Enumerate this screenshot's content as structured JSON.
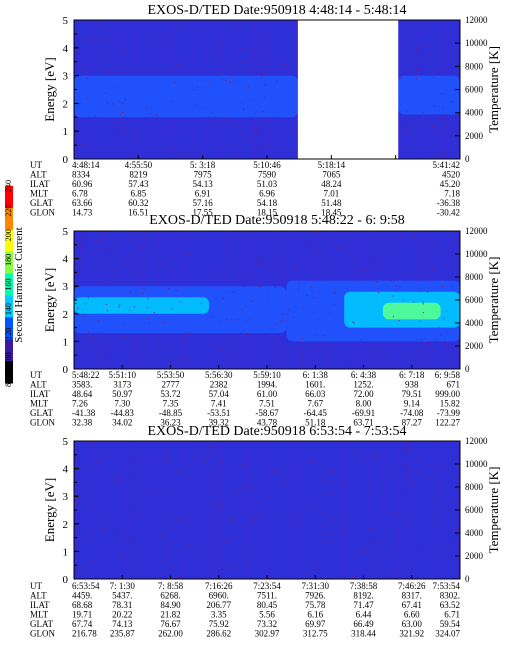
{
  "colors": {
    "background": "#2f2fd8",
    "enhanced": "#1f55ff",
    "strong": "#00c8ff",
    "peak": "#55ff90",
    "gap": "#ffffff",
    "speckle": "#7a1a6a"
  },
  "colorbar": {
    "label": "Second Harmonic Current",
    "ticks": [
      "240",
      "220",
      "200",
      "180",
      "160",
      "140",
      "120",
      "100",
      "80"
    ],
    "stops": [
      "#ff0000",
      "#ff8800",
      "#ffff00",
      "#88ff44",
      "#00ffaa",
      "#00ccff",
      "#0055ff",
      "#3a1aa0",
      "#000000"
    ]
  },
  "chart_data": [
    {
      "type": "heatmap",
      "title": "EXOS-D/TED   Date:950918   4:48:14 - 5:48:14",
      "ylabel": "Energy [eV]",
      "y2label": "Temperature [K]",
      "ylim": [
        0,
        5
      ],
      "y2lim": [
        0,
        12000
      ],
      "yticks": [
        "0",
        "1",
        "2",
        "3",
        "4",
        "5"
      ],
      "y2ticks": [
        "0",
        "2000",
        "4000",
        "6000",
        "8000",
        "10000",
        "12000"
      ],
      "gaps": [
        [
          0.58,
          0.84
        ]
      ],
      "bands": [
        {
          "from": 0.0,
          "to": 0.58,
          "ylow": 1.5,
          "yhigh": 3.0,
          "level": "enhanced"
        },
        {
          "from": 0.84,
          "to": 1.0,
          "ylow": 1.6,
          "yhigh": 3.0,
          "level": "enhanced"
        }
      ],
      "rows": [
        {
          "name": "UT",
          "values": [
            "4:48:14",
            "4:55:50",
            "5: 3:18",
            "5:10:46",
            "5:18:14",
            "",
            "5:41:42"
          ]
        },
        {
          "name": "ALT",
          "values": [
            "8334",
            "8219",
            "7975",
            "7590",
            "7065",
            "",
            "4520"
          ]
        },
        {
          "name": "ILAT",
          "values": [
            "60.96",
            "57.43",
            "54.13",
            "51.03",
            "48.24",
            "",
            "45.20"
          ]
        },
        {
          "name": "MLT",
          "values": [
            "6.78",
            "6.85",
            "6.91",
            "6.96",
            "7.01",
            "",
            "7.18"
          ]
        },
        {
          "name": "GLAT",
          "values": [
            "63.66",
            "60.32",
            "57.16",
            "54.18",
            "51.48",
            "",
            "-36.38"
          ]
        },
        {
          "name": "GLON",
          "values": [
            "14.73",
            "16.51",
            "17.55",
            "18.15",
            "18.45",
            "",
            "-30.42"
          ]
        }
      ]
    },
    {
      "type": "heatmap",
      "title": "EXOS-D/TED   Date:950918   5:48:22 - 6: 9:58",
      "ylabel": "Energy [eV]",
      "y2label": "Temperature [K]",
      "ylim": [
        0,
        5
      ],
      "y2lim": [
        0,
        12000
      ],
      "yticks": [
        "0",
        "1",
        "2",
        "3",
        "4",
        "5"
      ],
      "y2ticks": [
        "0",
        "2000",
        "4000",
        "6000",
        "8000",
        "10000",
        "12000"
      ],
      "gaps": [],
      "bands": [
        {
          "from": 0.0,
          "to": 0.55,
          "ylow": 1.3,
          "yhigh": 3.0,
          "level": "enhanced"
        },
        {
          "from": 0.55,
          "to": 1.0,
          "ylow": 1.0,
          "yhigh": 3.2,
          "level": "enhanced"
        },
        {
          "from": 0.0,
          "to": 0.35,
          "ylow": 2.0,
          "yhigh": 2.6,
          "level": "strong"
        },
        {
          "from": 0.7,
          "to": 1.0,
          "ylow": 1.5,
          "yhigh": 2.8,
          "level": "strong"
        },
        {
          "from": 0.8,
          "to": 0.95,
          "ylow": 1.8,
          "yhigh": 2.4,
          "level": "peak"
        }
      ],
      "rows": [
        {
          "name": "UT",
          "values": [
            "5:48:22",
            "5:51:10",
            "5:53:50",
            "5:56:30",
            "5:59:10",
            "6: 1:38",
            "6: 4:38",
            "6: 7:18",
            "6: 9:58"
          ]
        },
        {
          "name": "ALT",
          "values": [
            "3583.",
            "3173",
            "2777",
            "2382",
            "1994.",
            "1601.",
            "1252.",
            "938",
            "671"
          ]
        },
        {
          "name": "ILAT",
          "values": [
            "48.64",
            "50.97",
            "53.72",
            "57.04",
            "61.00",
            "66.03",
            "72.00",
            "79.51",
            "999.00"
          ]
        },
        {
          "name": "MLT",
          "values": [
            "7.26",
            "7.30",
            "7.35",
            "7.41",
            "7.51",
            "7.67",
            "8.00",
            "9.14",
            "15.82"
          ]
        },
        {
          "name": "GLAT",
          "values": [
            "-41.38",
            "-44.83",
            "-48.85",
            "-53.51",
            "-58.67",
            "-64.45",
            "-69.91",
            "-74.08",
            "-73.99"
          ]
        },
        {
          "name": "GLON",
          "values": [
            "32.38",
            "34.02",
            "36.23",
            "39.32",
            "43.78",
            "51.18",
            "63.71",
            "87.27",
            "122.27"
          ]
        }
      ]
    },
    {
      "type": "heatmap",
      "title": "EXOS-D/TED   Date:950918   6:53:54 - 7:53:54",
      "ylabel": "Energy [eV]",
      "y2label": "Temperature [K]",
      "ylim": [
        0,
        5
      ],
      "y2lim": [
        0,
        12000
      ],
      "yticks": [
        "0",
        "1",
        "2",
        "3",
        "4",
        "5"
      ],
      "y2ticks": [
        "0",
        "2000",
        "4000",
        "6000",
        "8000",
        "10000",
        "12000"
      ],
      "gaps": [],
      "bands": [],
      "rows": [
        {
          "name": "UT",
          "values": [
            "6:53:54",
            "7: 1:30",
            "7: 8:58",
            "7:16:26",
            "7:23:54",
            "7:31:30",
            "7:38:58",
            "7:46:26",
            "7:53:54"
          ]
        },
        {
          "name": "ALT",
          "values": [
            "4459.",
            "5437.",
            "6268.",
            "6960.",
            "7511.",
            "7926.",
            "8192.",
            "8317.",
            "8302."
          ]
        },
        {
          "name": "ILAT",
          "values": [
            "68.68",
            "78.31",
            "84.90",
            "206.77",
            "80.45",
            "75.78",
            "71.47",
            "67.41",
            "63.52"
          ]
        },
        {
          "name": "MLT",
          "values": [
            "19.71",
            "20.22",
            "21.82",
            "3.35",
            "5.56",
            "6.16",
            "6.44",
            "6.60",
            "6.71"
          ]
        },
        {
          "name": "GLAT",
          "values": [
            "67.74",
            "74.13",
            "76.67",
            "75.92",
            "73.32",
            "69.97",
            "66.49",
            "63.00",
            "59.54"
          ]
        },
        {
          "name": "GLON",
          "values": [
            "216.78",
            "235.87",
            "262.00",
            "286.62",
            "302.97",
            "312.75",
            "318.44",
            "321.92",
            "324.07"
          ]
        }
      ]
    }
  ]
}
